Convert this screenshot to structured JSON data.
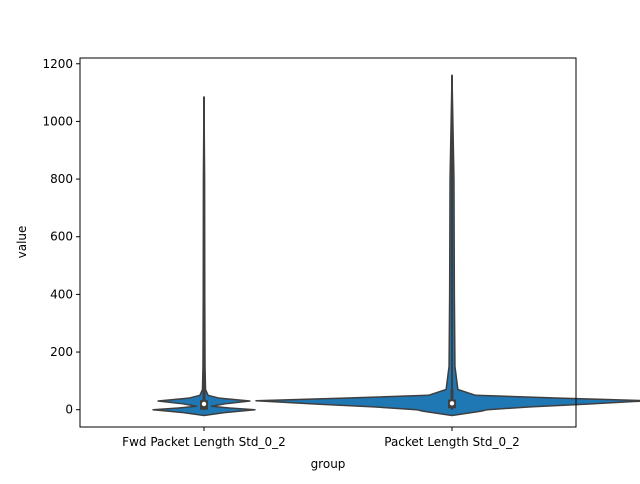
{
  "chart_data": {
    "type": "violin",
    "title": "",
    "xlabel": "group",
    "ylabel": "value",
    "ylim": [
      -60,
      1220
    ],
    "yticks": [
      0,
      200,
      400,
      600,
      800,
      1000,
      1200
    ],
    "ytick_labels": [
      "0",
      "200",
      "400",
      "600",
      "800",
      "1000",
      "1200"
    ],
    "categories": [
      "Fwd Packet Length Std_0_2",
      "Packet Length Std_0_2"
    ],
    "fill_color": "#1f77b4",
    "edge_color": "#3f3f3f",
    "groups": [
      {
        "category": "Fwd Packet Length Std_0_2",
        "min": 0,
        "max": 1085,
        "q1": 0,
        "median": 20,
        "q3": 33,
        "whisker_high": 70,
        "density_profile": [
          [
            -20,
            0.0
          ],
          [
            -10,
            0.4
          ],
          [
            0,
            1.0
          ],
          [
            6,
            0.5
          ],
          [
            12,
            0.15
          ],
          [
            20,
            0.4
          ],
          [
            30,
            0.9
          ],
          [
            40,
            0.3
          ],
          [
            50,
            0.08
          ],
          [
            70,
            0.03
          ],
          [
            150,
            0.02
          ],
          [
            400,
            0.015
          ],
          [
            800,
            0.012
          ],
          [
            1085,
            0.0
          ]
        ]
      },
      {
        "category": "Packet Length Std_0_2",
        "min": 0,
        "max": 1160,
        "q1": 5,
        "median": 22,
        "q3": 35,
        "whisker_high": 70,
        "density_profile": [
          [
            -20,
            0.0
          ],
          [
            -5,
            0.15
          ],
          [
            0,
            0.18
          ],
          [
            10,
            0.4
          ],
          [
            20,
            0.7
          ],
          [
            31,
            1.0
          ],
          [
            40,
            0.55
          ],
          [
            50,
            0.12
          ],
          [
            70,
            0.03
          ],
          [
            150,
            0.015
          ],
          [
            400,
            0.012
          ],
          [
            800,
            0.01
          ],
          [
            1160,
            0.0
          ]
        ]
      }
    ],
    "density_halfwidth_data_scale": [
      51,
      196
    ]
  }
}
